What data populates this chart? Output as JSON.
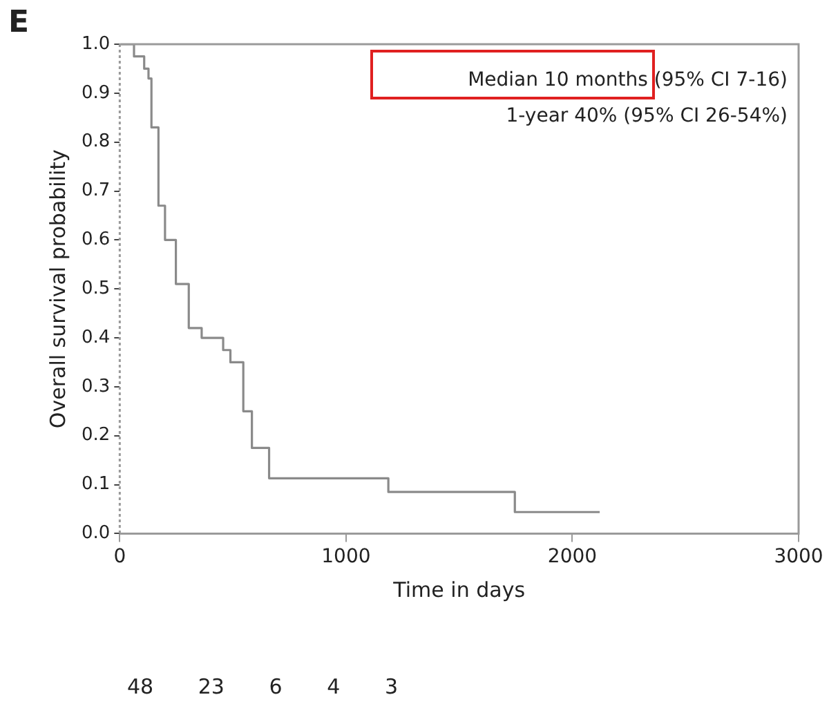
{
  "chart_data": {
    "type": "step",
    "xlabel": "Time in days",
    "ylabel": "Overall survival probability",
    "x": [
      0,
      63,
      108,
      127,
      140,
      171,
      200,
      248,
      305,
      362,
      457,
      489,
      546,
      584,
      660,
      1187,
      1746,
      2121
    ],
    "series": [
      {
        "color": "#8a8a8a",
        "values": [
          1.0,
          0.975,
          0.95,
          0.93,
          0.83,
          0.67,
          0.6,
          0.51,
          0.42,
          0.4,
          0.375,
          0.35,
          0.25,
          0.175,
          0.113,
          0.085,
          0.044,
          0.044
        ]
      }
    ],
    "xlim": [
      0,
      3000
    ],
    "xticks": [
      0,
      1000,
      2000,
      3000
    ],
    "ylim": [
      0,
      1
    ],
    "yticks": [
      {
        "value": 0,
        "label": "0.0"
      },
      {
        "value": 0.1,
        "label": "0.1"
      },
      {
        "value": 0.2,
        "label": "0.2"
      },
      {
        "value": 0.3,
        "label": "0.3"
      },
      {
        "value": 0.4,
        "label": "0.4"
      },
      {
        "value": 0.5,
        "label": "0.5"
      },
      {
        "value": 0.6,
        "label": "0.6"
      },
      {
        "value": 0.7,
        "label": "0.7"
      },
      {
        "value": 0.8,
        "label": "0.8"
      },
      {
        "value": 0.9,
        "label": "0.9"
      },
      {
        "value": 1,
        "label": "1.0"
      }
    ],
    "grid": false,
    "legend": false,
    "marker": "none",
    "line_style": "solid",
    "annotations": [
      "E",
      "Median 10 months (95% CI 7-16)",
      "1-year 40% (95% CI 26-54%)",
      "48   23   6   4   3"
    ]
  }
}
